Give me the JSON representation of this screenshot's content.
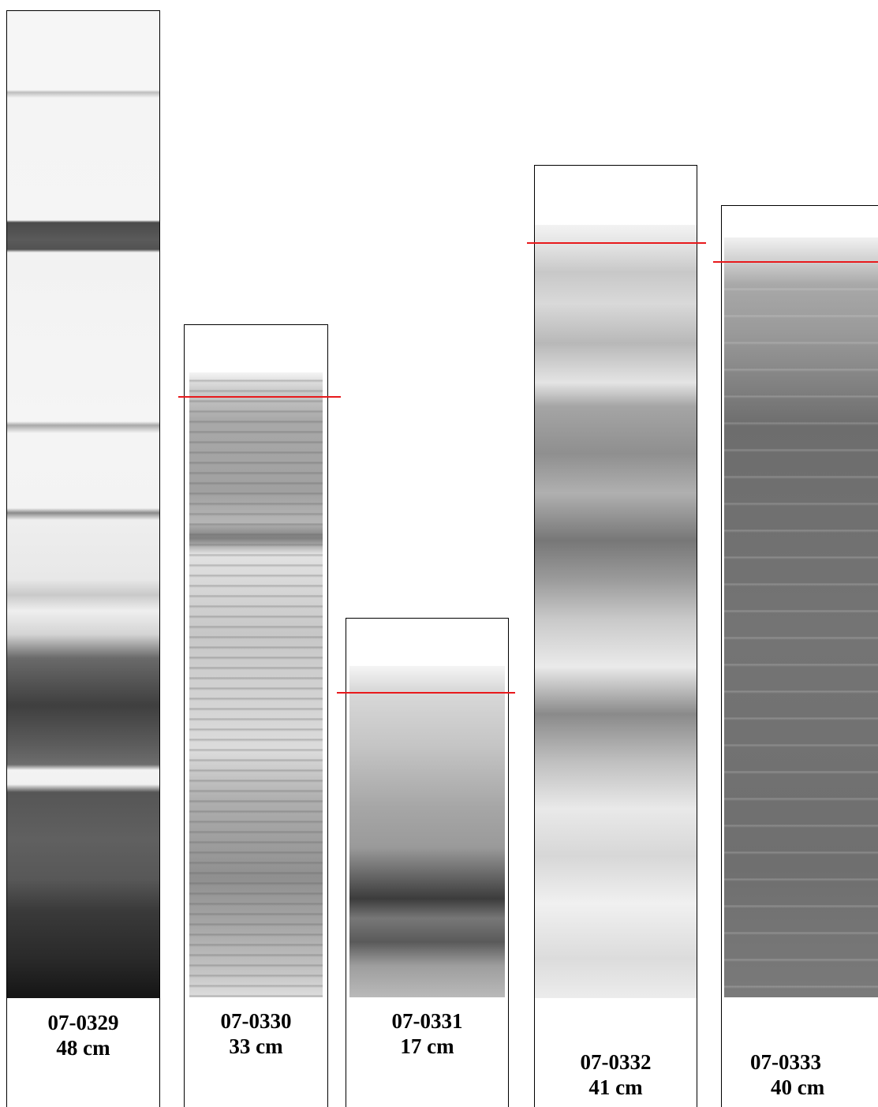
{
  "cores": [
    {
      "id": "07-0329",
      "length": "48 cm"
    },
    {
      "id": "07-0330",
      "length": "33 cm"
    },
    {
      "id": "07-0331",
      "length": "17 cm"
    },
    {
      "id": "07-0332",
      "length": "41 cm"
    },
    {
      "id": "07-0333",
      "length": "40 cm"
    }
  ]
}
